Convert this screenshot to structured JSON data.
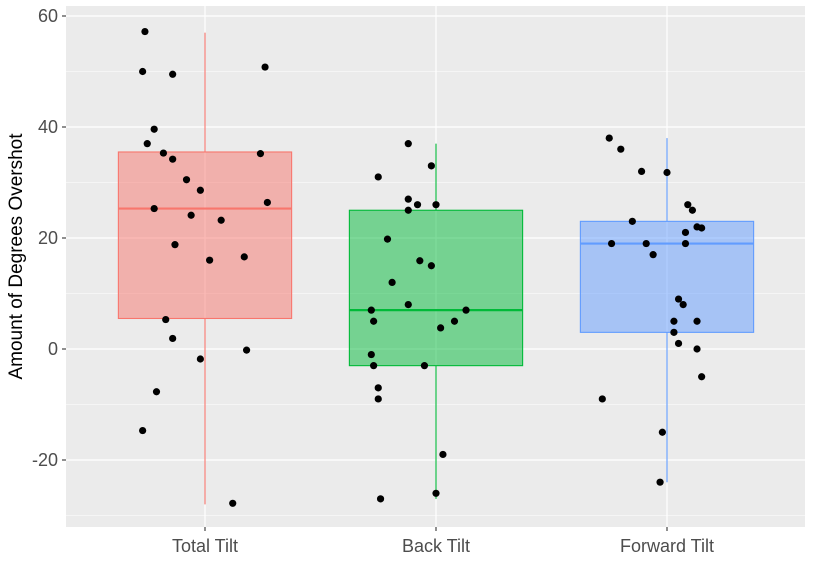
{
  "chart_data": {
    "type": "boxplot",
    "title": "",
    "xlabel": "",
    "ylabel": "Amount of Degrees Overshot",
    "ylim": [
      -32,
      62
    ],
    "yticks": [
      -20,
      0,
      20,
      40,
      60
    ],
    "grid": true,
    "background": "#EBEBEB",
    "categories": [
      "Total Tilt",
      "Back Tilt",
      "Forward Tilt"
    ],
    "colors": [
      "#F8766D",
      "#00BA38",
      "#619CFF"
    ],
    "boxes": [
      {
        "category": "Total Tilt",
        "min": -28,
        "q1": 5.5,
        "median": 25.3,
        "q3": 35.5,
        "max": 57
      },
      {
        "category": "Back Tilt",
        "min": -27,
        "q1": -3,
        "median": 7,
        "q3": 25,
        "max": 37
      },
      {
        "category": "Forward Tilt",
        "min": -24,
        "q1": 3,
        "median": 19,
        "q3": 23,
        "max": 38
      }
    ],
    "points": [
      {
        "category": "Total Tilt",
        "offset": -0.26,
        "y": 57.2
      },
      {
        "category": "Total Tilt",
        "offset": -0.27,
        "y": 50
      },
      {
        "category": "Total Tilt",
        "offset": -0.14,
        "y": 49.5
      },
      {
        "category": "Total Tilt",
        "offset": 0.26,
        "y": 50.8
      },
      {
        "category": "Total Tilt",
        "offset": -0.22,
        "y": 39.6
      },
      {
        "category": "Total Tilt",
        "offset": -0.25,
        "y": 37
      },
      {
        "category": "Total Tilt",
        "offset": -0.18,
        "y": 35.3
      },
      {
        "category": "Total Tilt",
        "offset": -0.14,
        "y": 34.2
      },
      {
        "category": "Total Tilt",
        "offset": 0.24,
        "y": 35.2
      },
      {
        "category": "Total Tilt",
        "offset": -0.08,
        "y": 30.5
      },
      {
        "category": "Total Tilt",
        "offset": -0.02,
        "y": 28.6
      },
      {
        "category": "Total Tilt",
        "offset": 0.27,
        "y": 26.4
      },
      {
        "category": "Total Tilt",
        "offset": -0.22,
        "y": 25.3
      },
      {
        "category": "Total Tilt",
        "offset": -0.06,
        "y": 24.1
      },
      {
        "category": "Total Tilt",
        "offset": 0.07,
        "y": 23.2
      },
      {
        "category": "Total Tilt",
        "offset": -0.13,
        "y": 18.8
      },
      {
        "category": "Total Tilt",
        "offset": 0.02,
        "y": 16
      },
      {
        "category": "Total Tilt",
        "offset": 0.17,
        "y": 16.6
      },
      {
        "category": "Total Tilt",
        "offset": -0.17,
        "y": 5.3
      },
      {
        "category": "Total Tilt",
        "offset": -0.14,
        "y": 1.9
      },
      {
        "category": "Total Tilt",
        "offset": 0.18,
        "y": -0.2
      },
      {
        "category": "Total Tilt",
        "offset": -0.02,
        "y": -1.8
      },
      {
        "category": "Total Tilt",
        "offset": -0.21,
        "y": -7.7
      },
      {
        "category": "Total Tilt",
        "offset": -0.27,
        "y": -14.7
      },
      {
        "category": "Total Tilt",
        "offset": 0.12,
        "y": -27.8
      },
      {
        "category": "Back Tilt",
        "offset": -0.12,
        "y": 37
      },
      {
        "category": "Back Tilt",
        "offset": -0.02,
        "y": 33
      },
      {
        "category": "Back Tilt",
        "offset": -0.25,
        "y": 31
      },
      {
        "category": "Back Tilt",
        "offset": -0.12,
        "y": 27
      },
      {
        "category": "Back Tilt",
        "offset": -0.08,
        "y": 26
      },
      {
        "category": "Back Tilt",
        "offset": 0.0,
        "y": 26
      },
      {
        "category": "Back Tilt",
        "offset": -0.12,
        "y": 25
      },
      {
        "category": "Back Tilt",
        "offset": -0.21,
        "y": 19.8
      },
      {
        "category": "Back Tilt",
        "offset": -0.07,
        "y": 15.9
      },
      {
        "category": "Back Tilt",
        "offset": -0.02,
        "y": 15
      },
      {
        "category": "Back Tilt",
        "offset": -0.19,
        "y": 12
      },
      {
        "category": "Back Tilt",
        "offset": -0.12,
        "y": 8
      },
      {
        "category": "Back Tilt",
        "offset": -0.28,
        "y": 7
      },
      {
        "category": "Back Tilt",
        "offset": 0.13,
        "y": 7
      },
      {
        "category": "Back Tilt",
        "offset": -0.27,
        "y": 5
      },
      {
        "category": "Back Tilt",
        "offset": 0.08,
        "y": 5
      },
      {
        "category": "Back Tilt",
        "offset": 0.02,
        "y": 3.8
      },
      {
        "category": "Back Tilt",
        "offset": -0.28,
        "y": -1
      },
      {
        "category": "Back Tilt",
        "offset": -0.27,
        "y": -3
      },
      {
        "category": "Back Tilt",
        "offset": -0.05,
        "y": -3
      },
      {
        "category": "Back Tilt",
        "offset": -0.25,
        "y": -7
      },
      {
        "category": "Back Tilt",
        "offset": -0.25,
        "y": -9
      },
      {
        "category": "Back Tilt",
        "offset": 0.03,
        "y": -19
      },
      {
        "category": "Back Tilt",
        "offset": 0.0,
        "y": -26
      },
      {
        "category": "Back Tilt",
        "offset": -0.24,
        "y": -27
      },
      {
        "category": "Forward Tilt",
        "offset": -0.25,
        "y": 38
      },
      {
        "category": "Forward Tilt",
        "offset": -0.2,
        "y": 36
      },
      {
        "category": "Forward Tilt",
        "offset": -0.11,
        "y": 32
      },
      {
        "category": "Forward Tilt",
        "offset": 0.0,
        "y": 31.8
      },
      {
        "category": "Forward Tilt",
        "offset": 0.09,
        "y": 26
      },
      {
        "category": "Forward Tilt",
        "offset": 0.11,
        "y": 25
      },
      {
        "category": "Forward Tilt",
        "offset": -0.15,
        "y": 23
      },
      {
        "category": "Forward Tilt",
        "offset": 0.13,
        "y": 22
      },
      {
        "category": "Forward Tilt",
        "offset": 0.15,
        "y": 21.8
      },
      {
        "category": "Forward Tilt",
        "offset": 0.08,
        "y": 21
      },
      {
        "category": "Forward Tilt",
        "offset": -0.24,
        "y": 19
      },
      {
        "category": "Forward Tilt",
        "offset": -0.09,
        "y": 19
      },
      {
        "category": "Forward Tilt",
        "offset": 0.08,
        "y": 19
      },
      {
        "category": "Forward Tilt",
        "offset": -0.06,
        "y": 17
      },
      {
        "category": "Forward Tilt",
        "offset": 0.05,
        "y": 9
      },
      {
        "category": "Forward Tilt",
        "offset": 0.07,
        "y": 8
      },
      {
        "category": "Forward Tilt",
        "offset": 0.03,
        "y": 5
      },
      {
        "category": "Forward Tilt",
        "offset": 0.13,
        "y": 5
      },
      {
        "category": "Forward Tilt",
        "offset": 0.03,
        "y": 3
      },
      {
        "category": "Forward Tilt",
        "offset": 0.05,
        "y": 1
      },
      {
        "category": "Forward Tilt",
        "offset": 0.13,
        "y": 0
      },
      {
        "category": "Forward Tilt",
        "offset": 0.15,
        "y": -5
      },
      {
        "category": "Forward Tilt",
        "offset": -0.28,
        "y": -9
      },
      {
        "category": "Forward Tilt",
        "offset": -0.02,
        "y": -15
      },
      {
        "category": "Forward Tilt",
        "offset": -0.03,
        "y": -24
      }
    ]
  }
}
